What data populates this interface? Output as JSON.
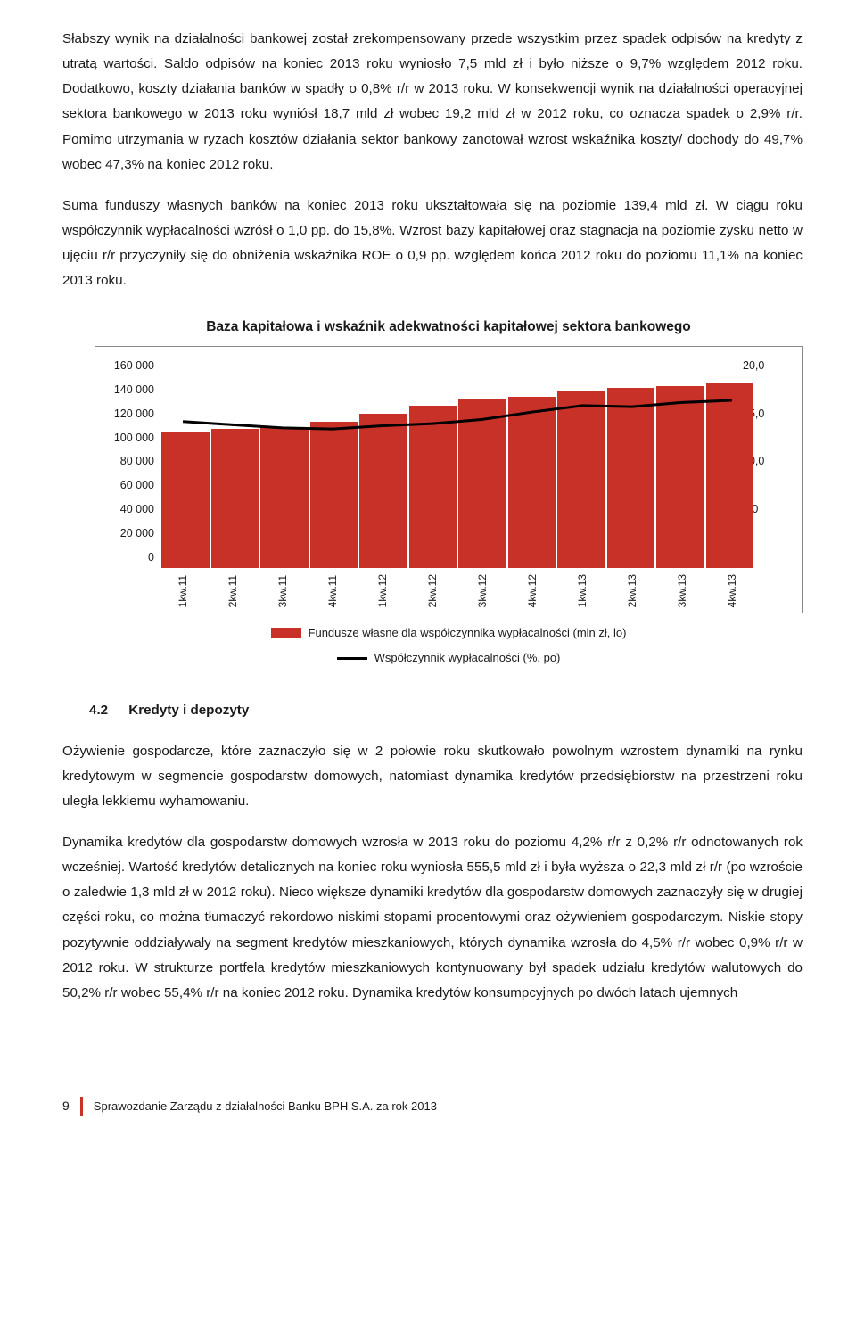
{
  "para1": "Słabszy wynik na działalności bankowej został zrekompensowany przede wszystkim przez spadek odpisów na kredyty z utratą wartości. Saldo odpisów na koniec 2013 roku wyniosło 7,5 mld zł i było niższe o 9,7% względem 2012 roku. Dodatkowo, koszty działania banków w spadły o 0,8% r/r w 2013 roku. W konsekwencji wynik na działalności operacyjnej sektora bankowego w 2013 roku wyniósł 18,7 mld zł wobec 19,2 mld zł w 2012 roku, co oznacza spadek o 2,9% r/r. Pomimo utrzymania w ryzach kosztów działania sektor bankowy zanotował wzrost wskaźnika koszty/ dochody do 49,7% wobec 47,3% na koniec 2012 roku.",
  "para2": "Suma funduszy własnych banków na koniec 2013 roku ukształtowała się na poziomie 139,4 mld zł. W ciągu roku współczynnik wypłacalności wzrósł o 1,0 pp. do 15,8%. Wzrost bazy kapitałowej oraz stagnacja na poziomie zysku netto w ujęciu r/r przyczyniły się do obniżenia wskaźnika ROE o 0,9 pp. względem końca 2012 roku do poziomu 11,1% na koniec 2013 roku.",
  "chart": {
    "title": "Baza kapitałowa i wskaźnik adekwatności kapitałowej sektora bankowego",
    "y1_ticks": [
      "160 000",
      "140 000",
      "120 000",
      "100 000",
      "80 000",
      "60 000",
      "40 000",
      "20 000",
      "0"
    ],
    "y2_ticks": [
      "20,0",
      "15,0",
      "10,0",
      "5,0",
      "-"
    ],
    "y1_max": 160000,
    "y2_max": 20,
    "categories": [
      "1kw.11",
      "2kw.11",
      "3kw.11",
      "4kw.11",
      "1kw.12",
      "2kw.12",
      "3kw.12",
      "4kw.12",
      "1kw.13",
      "2kw.13",
      "3kw.13",
      "4kw.13"
    ],
    "bar_values": [
      103000,
      105000,
      106000,
      110000,
      116000,
      122000,
      127000,
      129000,
      134000,
      136000,
      137000,
      139400
    ],
    "line_values": [
      13.8,
      13.5,
      13.2,
      13.1,
      13.4,
      13.6,
      14.0,
      14.7,
      15.3,
      15.2,
      15.6,
      15.8
    ],
    "bar_color": "#c73128",
    "line_color": "#000000",
    "line_width": 3,
    "legend1": "Fundusze własne dla współczynnika wypłacalności (mln zł, lo)",
    "legend2": "Współczynnik wypłacalności (%, po)"
  },
  "section": {
    "num": "4.2",
    "title": "Kredyty i depozyty"
  },
  "para3": "Ożywienie gospodarcze, które zaznaczyło się w 2 połowie roku skutkowało powolnym wzrostem dynamiki na rynku kredytowym w segmencie gospodarstw domowych, natomiast dynamika kredytów przedsiębiorstw na przestrzeni roku uległa lekkiemu wyhamowaniu.",
  "para4": "Dynamika kredytów dla gospodarstw domowych wzrosła w 2013 roku do poziomu 4,2% r/r z 0,2% r/r odnotowanych rok wcześniej. Wartość kredytów detalicznych na koniec roku wyniosła 555,5 mld zł i była wyższa o 22,3 mld zł r/r (po wzroście o zaledwie 1,3 mld zł w 2012 roku). Nieco większe dynamiki kredytów dla gospodarstw domowych zaznaczyły się w drugiej części roku, co można tłumaczyć rekordowo niskimi stopami procentowymi oraz ożywieniem gospodarczym. Niskie stopy pozytywnie oddziaływały na segment kredytów mieszkaniowych, których dynamika wzrosła do 4,5% r/r wobec 0,9% r/r w 2012 roku. W strukturze portfela kredytów mieszkaniowych kontynuowany był spadek udziału kredytów walutowych do 50,2% r/r wobec 55,4% r/r na koniec 2012 roku. Dynamika kredytów konsumpcyjnych po dwóch latach ujemnych",
  "footer": {
    "page": "9",
    "text": "Sprawozdanie Zarządu z działalności Banku BPH S.A. za rok 2013"
  }
}
